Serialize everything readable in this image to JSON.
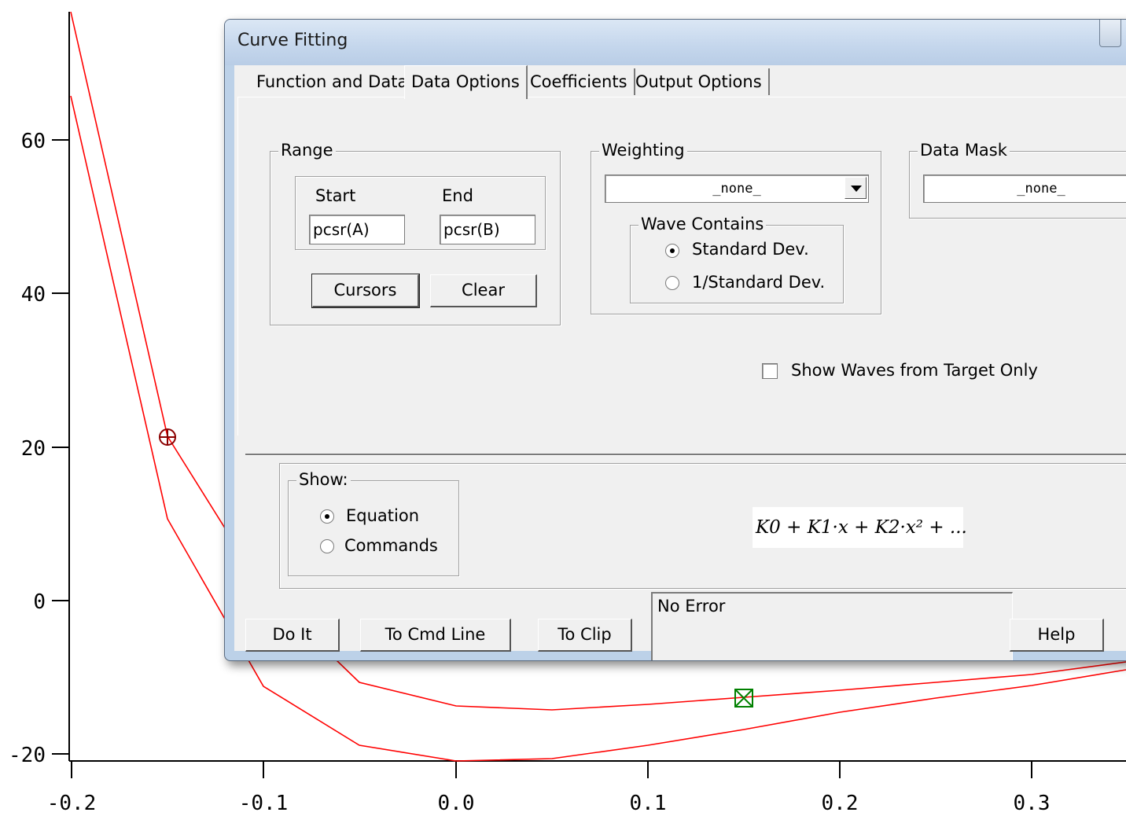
{
  "window": {
    "title": "Curve Fitting"
  },
  "tabs": [
    "Function and Data",
    "Data Options",
    "Coefficients",
    "Output Options"
  ],
  "range": {
    "legend": "Range",
    "start_label": "Start",
    "end_label": "End",
    "start_value": "pcsr(A)",
    "end_value": "pcsr(B)",
    "cursors_button": "Cursors",
    "clear_button": "Clear"
  },
  "weighting": {
    "legend": "Weighting",
    "selected": "_none_",
    "wave_contains_legend": "Wave Contains",
    "options": [
      "Standard Dev.",
      "1/Standard Dev."
    ],
    "selected_option": "Standard Dev."
  },
  "data_mask": {
    "legend": "Data Mask",
    "selected": "_none_"
  },
  "show_waves_from_target_only": {
    "label": "Show Waves from Target Only",
    "checked": false
  },
  "show": {
    "legend": "Show:",
    "options": [
      "Equation",
      "Commands"
    ],
    "selected_option": "Equation"
  },
  "equation": "K0 + K1·x + K2·x² + ...",
  "status": "No Error",
  "buttons": {
    "do_it": "Do It",
    "to_cmd_line": "To Cmd Line",
    "to_clip": "To Clip",
    "help": "Help"
  },
  "plot": {
    "x_ticks": [
      "-0.2",
      "-0.1",
      "0.0",
      "0.1",
      "0.2",
      "0.3"
    ],
    "y_ticks": [
      "60",
      "40",
      "20",
      "0",
      "-20"
    ],
    "line_color": "#ff0000",
    "cursor_a_color": "#8b0000",
    "cursor_b_color": "#008000"
  }
}
